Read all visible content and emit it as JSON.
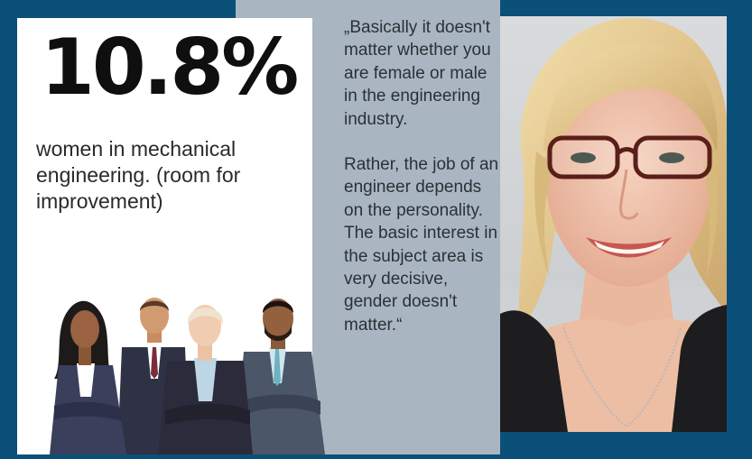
{
  "stat": {
    "value": "10.8%",
    "caption": "women in mechanical engineering. (room for improvement)"
  },
  "quote": {
    "paragraph1": "„Basically it doesn't matter whether you are female or male in the engineering industry.",
    "paragraph2": "Rather, the job of an engineer depends on the personality. The basic interest in the subject area is very decisive, gender doesn't matter.“"
  },
  "colors": {
    "background": "#0a5078",
    "card": "#ffffff",
    "quote_panel": "#a9b6c1"
  }
}
